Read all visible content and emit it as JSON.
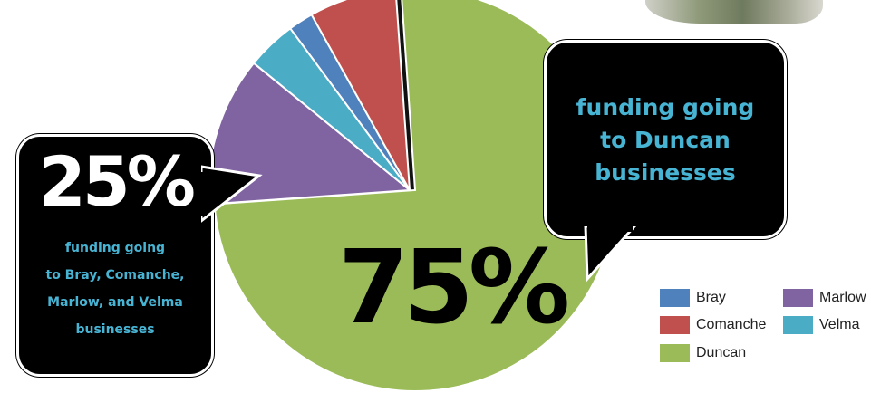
{
  "chart_data": {
    "type": "pie",
    "slices": [
      {
        "label": "Duncan",
        "value": 75,
        "color": "#9bbb59",
        "exploded": false
      },
      {
        "label": "Marlow",
        "value": 12,
        "color": "#8064a2",
        "exploded": true
      },
      {
        "label": "Velma",
        "value": 4,
        "color": "#4bacc6",
        "exploded": true
      },
      {
        "label": "Bray",
        "value": 2,
        "color": "#4f81bd",
        "exploded": true
      },
      {
        "label": "Comanche",
        "value": 7,
        "color": "#c0504d",
        "exploded": true
      }
    ],
    "legend": [
      {
        "label": "Bray",
        "color": "#4f81bd"
      },
      {
        "label": "Marlow",
        "color": "#8064a2"
      },
      {
        "label": "Comanche",
        "color": "#c0504d"
      },
      {
        "label": "Velma",
        "color": "#4bacc6"
      },
      {
        "label": "Duncan",
        "color": "#9bbb59"
      }
    ],
    "legend_position": "bottom-right"
  },
  "callouts": {
    "left": {
      "percent": "25%",
      "lines": [
        "funding going",
        "to Bray, Comanche,",
        "Marlow, and Velma",
        "businesses"
      ]
    },
    "right": {
      "lines": [
        "funding going",
        "to Duncan",
        "businesses"
      ]
    },
    "center": {
      "percent": "75%"
    }
  },
  "colors": {
    "accent_text": "#48b4d4",
    "bubble_bg": "#000000"
  }
}
